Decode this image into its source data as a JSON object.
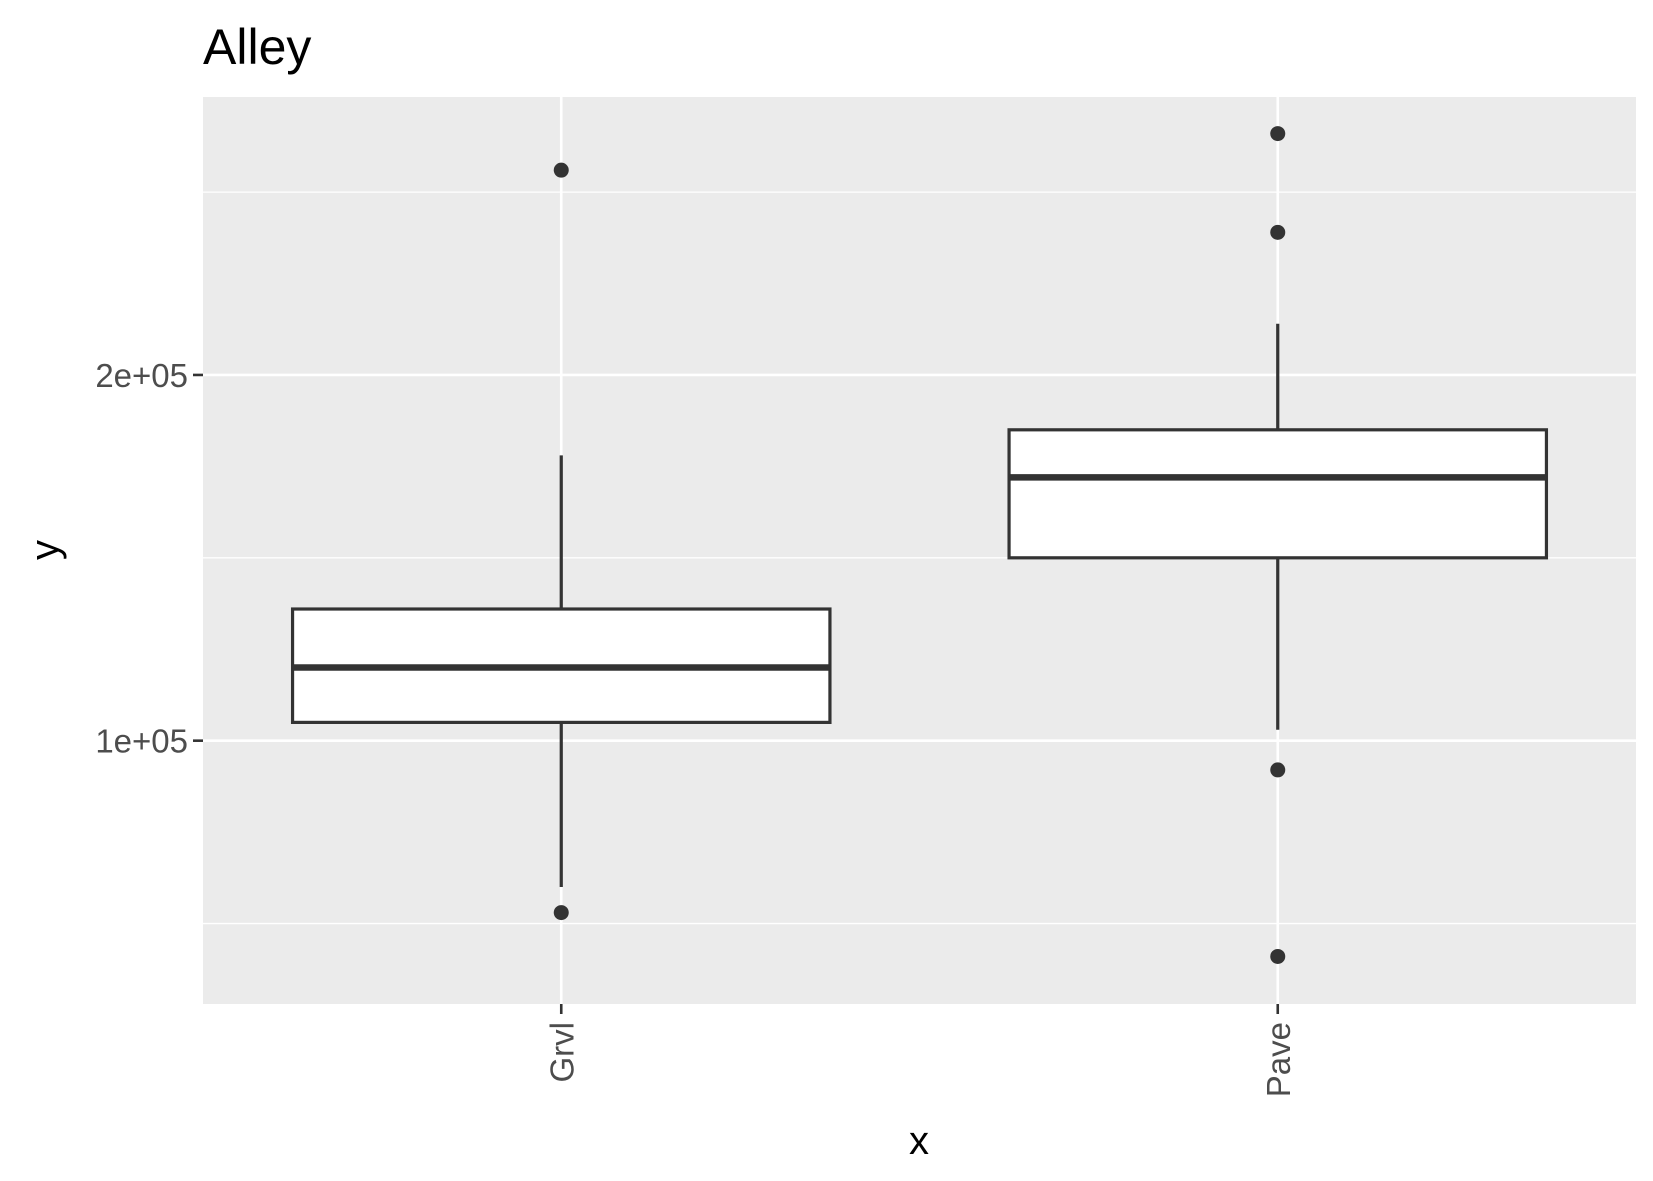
{
  "chart_data": {
    "type": "boxplot",
    "title": "Alley",
    "xlabel": "x",
    "ylabel": "y",
    "ylim": [
      28000,
      276000
    ],
    "y_ticks": [
      {
        "value": 100000,
        "label": "1e+05"
      },
      {
        "value": 200000,
        "label": "2e+05"
      }
    ],
    "y_minor_gridlines": [
      50000,
      150000,
      250000
    ],
    "grid": true,
    "legend": "none",
    "categories": [
      "Grvl",
      "Pave"
    ],
    "boxes": [
      {
        "category": "Grvl",
        "whisker_low": 60000,
        "q1": 105000,
        "median": 120000,
        "q3": 136000,
        "whisker_high": 178000,
        "outliers": [
          53000,
          256000
        ]
      },
      {
        "category": "Pave",
        "whisker_low": 103000,
        "q1": 150000,
        "median": 172000,
        "q3": 185000,
        "whisker_high": 214000,
        "outliers": [
          41000,
          92000,
          239000,
          266000
        ]
      }
    ],
    "colors": {
      "panel_background": "#ebebeb",
      "gridline": "#ffffff",
      "box_fill": "#ffffff",
      "box_stroke": "#333333",
      "point": "#333333",
      "tick_label": "#4d4d4d",
      "axis_title": "#000000"
    }
  }
}
